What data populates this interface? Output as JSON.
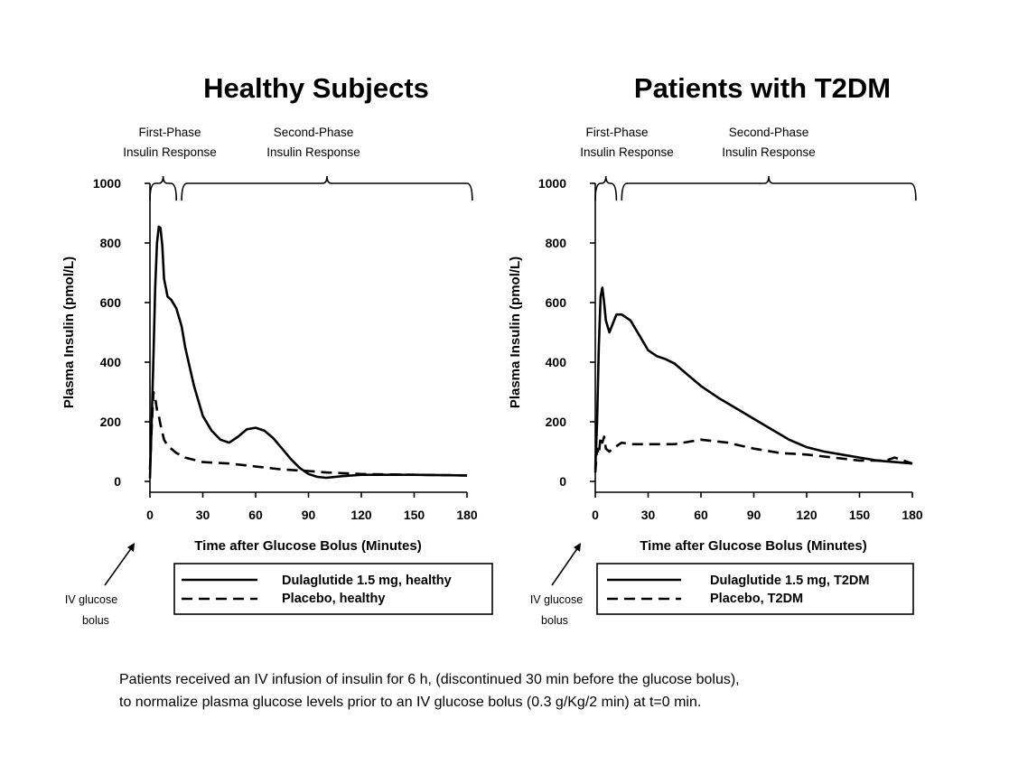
{
  "chart_data": [
    {
      "type": "line",
      "title": "Healthy Subjects",
      "xlabel": "Time after Glucose Bolus (Minutes)",
      "ylabel": "Plasma Insulin (pmol/L)",
      "xlim": [
        0,
        180
      ],
      "ylim": [
        0,
        1000
      ],
      "xticks": [
        0,
        30,
        60,
        90,
        120,
        150,
        180
      ],
      "yticks": [
        0,
        200,
        400,
        600,
        800,
        1000
      ],
      "grid": false,
      "legend_position": "bottom",
      "phases": [
        {
          "label_line1": "First-Phase",
          "label_line2": "Insulin Response",
          "range": [
            0,
            15
          ]
        },
        {
          "label_line1": "Second-Phase",
          "label_line2": "Insulin Response",
          "range": [
            18,
            183
          ]
        }
      ],
      "annotation": {
        "line1": "IV glucose",
        "line2": "bolus"
      },
      "series": [
        {
          "name": "Dulaglutide 1.5 mg, healthy",
          "style": "solid",
          "x": [
            0,
            1,
            2,
            3,
            4,
            5,
            6,
            7,
            8,
            10,
            12,
            15,
            18,
            20,
            25,
            30,
            35,
            40,
            45,
            50,
            55,
            60,
            65,
            70,
            75,
            80,
            85,
            90,
            95,
            100,
            110,
            120,
            150,
            180
          ],
          "y": [
            10,
            200,
            420,
            650,
            800,
            855,
            850,
            790,
            680,
            620,
            610,
            580,
            520,
            450,
            320,
            220,
            170,
            140,
            130,
            150,
            175,
            180,
            170,
            145,
            110,
            75,
            45,
            25,
            15,
            12,
            18,
            22,
            22,
            20
          ]
        },
        {
          "name": "Placebo, healthy",
          "style": "dashed",
          "x": [
            0,
            1,
            2,
            3,
            4,
            5,
            6,
            8,
            10,
            15,
            20,
            30,
            45,
            60,
            75,
            90,
            100,
            120,
            150,
            180
          ],
          "y": [
            40,
            180,
            300,
            280,
            240,
            220,
            190,
            140,
            120,
            95,
            80,
            65,
            60,
            50,
            40,
            35,
            30,
            25,
            22,
            20
          ]
        }
      ]
    },
    {
      "type": "line",
      "title": "Patients with T2DM",
      "xlabel": "Time after Glucose Bolus (Minutes)",
      "ylabel": "Plasma Insulin (pmol/L)",
      "xlim": [
        0,
        180
      ],
      "ylim": [
        0,
        1000
      ],
      "xticks": [
        0,
        30,
        60,
        90,
        120,
        150,
        180
      ],
      "yticks": [
        0,
        200,
        400,
        600,
        800,
        1000
      ],
      "grid": false,
      "legend_position": "bottom",
      "phases": [
        {
          "label_line1": "First-Phase",
          "label_line2": "Insulin Response",
          "range": [
            0,
            12
          ]
        },
        {
          "label_line1": "Second-Phase",
          "label_line2": "Insulin Response",
          "range": [
            15,
            182
          ]
        }
      ],
      "annotation": {
        "line1": "IV glucose",
        "line2": "bolus"
      },
      "series": [
        {
          "name": "Dulaglutide 1.5 mg, T2DM",
          "style": "solid",
          "x": [
            0,
            1,
            2,
            3,
            4,
            5,
            6,
            8,
            10,
            12,
            15,
            20,
            25,
            30,
            35,
            40,
            45,
            50,
            60,
            70,
            80,
            90,
            100,
            110,
            120,
            130,
            140,
            150,
            160,
            170,
            180
          ],
          "y": [
            40,
            200,
            450,
            620,
            650,
            600,
            540,
            500,
            530,
            560,
            560,
            540,
            490,
            440,
            420,
            410,
            395,
            370,
            320,
            280,
            245,
            210,
            175,
            140,
            115,
            100,
            90,
            80,
            70,
            65,
            60
          ]
        },
        {
          "name": "Placebo, T2DM",
          "style": "dashed",
          "x": [
            0,
            1,
            2,
            3,
            4,
            5,
            6,
            8,
            10,
            15,
            20,
            30,
            45,
            60,
            75,
            90,
            105,
            120,
            135,
            150,
            165,
            170,
            180
          ],
          "y": [
            30,
            110,
            90,
            150,
            130,
            150,
            110,
            100,
            110,
            130,
            125,
            125,
            125,
            140,
            130,
            110,
            95,
            90,
            80,
            70,
            70,
            80,
            60
          ]
        }
      ]
    }
  ],
  "footnote": {
    "line1": "Patients received an IV infusion of insulin for 6 h, (discontinued 30 min before the glucose bolus),",
    "line2": "to normalize plasma glucose levels prior to an IV glucose bolus (0.3 g/Kg/2 min) at t=0 min."
  }
}
